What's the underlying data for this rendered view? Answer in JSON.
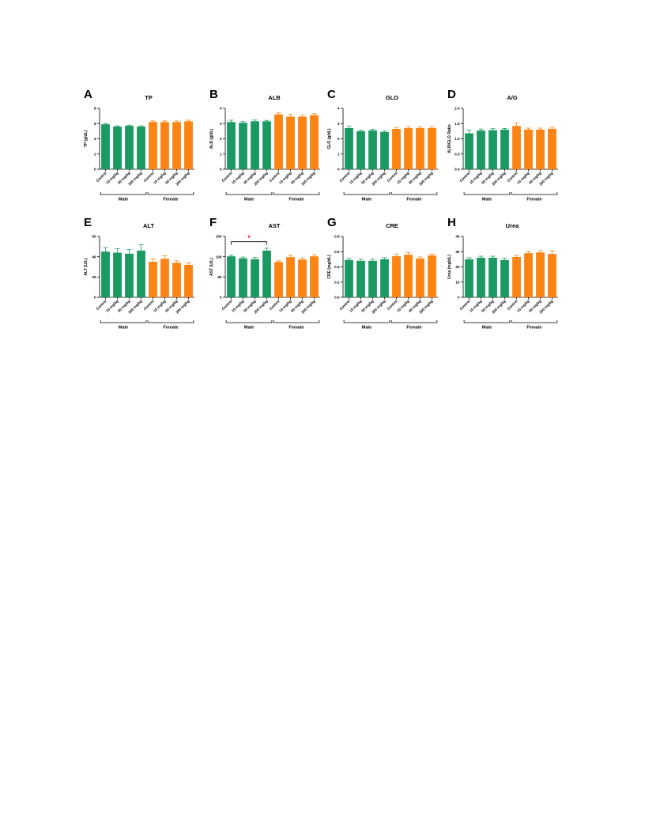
{
  "figure": {
    "group_labels": [
      "Male",
      "Female"
    ],
    "group_colors": [
      "#1a9a62",
      "#fb8412"
    ],
    "significance_color": "#e02020"
  },
  "chart_data": [
    {
      "type": "bar",
      "letter": "A",
      "title": "TP",
      "ylabel": "TP  (g/dL)",
      "categories": [
        "Control",
        "15 mg/kg",
        "50 mg/kg",
        "200 mg/kg",
        "Control",
        "15 mg/kg",
        "50 mg/kg",
        "200 mg/kg"
      ],
      "groups": [
        "Male",
        "Male",
        "Male",
        "Male",
        "Female",
        "Female",
        "Female",
        "Female"
      ],
      "values": [
        5.9,
        5.6,
        5.7,
        5.6,
        6.2,
        6.2,
        6.2,
        6.3
      ],
      "errors": [
        0.1,
        0.1,
        0.1,
        0.1,
        0.15,
        0.15,
        0.15,
        0.15
      ],
      "ylim": [
        0,
        8
      ],
      "yticks": [
        0,
        2,
        4,
        6,
        8
      ],
      "ytick_labels": [
        "0",
        "2",
        "4",
        "6",
        "8"
      ],
      "significance": []
    },
    {
      "type": "bar",
      "letter": "B",
      "title": "ALB",
      "ylabel": "ALB (g/dL)",
      "categories": [
        "Control",
        "15 mg/kg",
        "50 mg/kg",
        "200 mg/kg",
        "Control",
        "15 mg/kg",
        "50 mg/kg",
        "200 mg/kg"
      ],
      "groups": [
        "Male",
        "Male",
        "Male",
        "Male",
        "Female",
        "Female",
        "Female",
        "Female"
      ],
      "values": [
        3.1,
        3.05,
        3.15,
        3.15,
        3.6,
        3.45,
        3.45,
        3.55
      ],
      "errors": [
        0.12,
        0.08,
        0.08,
        0.06,
        0.1,
        0.15,
        0.08,
        0.1
      ],
      "ylim": [
        0,
        4
      ],
      "yticks": [
        0,
        1,
        2,
        3,
        4
      ],
      "ytick_labels": [
        "0",
        "1",
        "2",
        "3",
        "4"
      ],
      "significance": []
    },
    {
      "type": "bar",
      "letter": "C",
      "title": "GLO",
      "ylabel": "GLO (g/dL)",
      "categories": [
        "Control",
        "15 mg/kg",
        "50 mg/kg",
        "200 mg/kg",
        "Control",
        "15 mg/kg",
        "50 mg/kg",
        "200 mg/kg"
      ],
      "groups": [
        "Male",
        "Male",
        "Male",
        "Male",
        "Female",
        "Female",
        "Female",
        "Female"
      ],
      "values": [
        2.7,
        2.5,
        2.55,
        2.45,
        2.65,
        2.7,
        2.7,
        2.7
      ],
      "errors": [
        0.12,
        0.06,
        0.08,
        0.06,
        0.1,
        0.1,
        0.08,
        0.1
      ],
      "ylim": [
        0,
        4
      ],
      "yticks": [
        0,
        1,
        2,
        3,
        4
      ],
      "ytick_labels": [
        "0",
        "1",
        "2",
        "3",
        "4"
      ],
      "significance": []
    },
    {
      "type": "bar",
      "letter": "D",
      "title": "A/G",
      "ylabel": "ALB/GLO Ratio",
      "categories": [
        "Control",
        "15 mg/kg",
        "50 mg/kg",
        "200 mg/kg",
        "Control",
        "15 mg/kg",
        "50 mg/kg",
        "200 mg/kg"
      ],
      "groups": [
        "Male",
        "Male",
        "Male",
        "Male",
        "Female",
        "Female",
        "Female",
        "Female"
      ],
      "values": [
        1.18,
        1.27,
        1.28,
        1.3,
        1.42,
        1.3,
        1.3,
        1.33
      ],
      "errors": [
        0.1,
        0.05,
        0.05,
        0.04,
        0.1,
        0.05,
        0.05,
        0.05
      ],
      "ylim": [
        0,
        2
      ],
      "yticks": [
        0,
        0.5,
        1,
        1.5,
        2
      ],
      "ytick_labels": [
        "0.0",
        "0.5",
        "1.0",
        "1.5",
        "2.0"
      ],
      "significance": []
    },
    {
      "type": "bar",
      "letter": "E",
      "title": "ALT",
      "ylabel": "ALT (U/L)",
      "categories": [
        "Control",
        "15 mg/kg",
        "50 mg/kg",
        "200 mg/kg",
        "Control",
        "15 mg/kg",
        "50 mg/kg",
        "200 mg/kg"
      ],
      "groups": [
        "Male",
        "Male",
        "Male",
        "Male",
        "Female",
        "Female",
        "Female",
        "Female"
      ],
      "values": [
        45,
        44,
        43,
        46,
        35,
        38,
        34,
        32
      ],
      "errors": [
        4,
        4,
        4,
        6,
        3,
        3,
        2,
        2
      ],
      "ylim": [
        0,
        60
      ],
      "yticks": [
        0,
        20,
        40,
        60
      ],
      "ytick_labels": [
        "0",
        "20",
        "40",
        "60"
      ],
      "significance": []
    },
    {
      "type": "bar",
      "letter": "F",
      "title": "AST",
      "ylabel": "AST (U/L)",
      "categories": [
        "Control",
        "15 mg/kg",
        "50 mg/kg",
        "200 mg/kg",
        "Control",
        "15 mg/kg",
        "50 mg/kg",
        "200 mg/kg"
      ],
      "groups": [
        "Male",
        "Male",
        "Male",
        "Male",
        "Female",
        "Female",
        "Female",
        "Female"
      ],
      "values": [
        101,
        96,
        94,
        115,
        87,
        99,
        93,
        101
      ],
      "errors": [
        3,
        3,
        4,
        6,
        3,
        5,
        4,
        4
      ],
      "ylim": [
        0,
        150
      ],
      "yticks": [
        0,
        50,
        100,
        150
      ],
      "ytick_labels": [
        "0",
        "50",
        "100",
        "150"
      ],
      "significance": [
        {
          "from": 0,
          "to": 3,
          "label": "*",
          "level": 137
        }
      ]
    },
    {
      "type": "bar",
      "letter": "G",
      "title": "CRE",
      "ylabel": "CRE (mg/dL)",
      "categories": [
        "Control",
        "15 mg/kg",
        "50 mg/kg",
        "200 mg/kg",
        "Control",
        "15 mg/kg",
        "50 mg/kg",
        "200 mg/kg"
      ],
      "groups": [
        "Male",
        "Male",
        "Male",
        "Male",
        "Female",
        "Female",
        "Female",
        "Female"
      ],
      "values": [
        0.49,
        0.48,
        0.48,
        0.5,
        0.54,
        0.56,
        0.51,
        0.55
      ],
      "errors": [
        0.02,
        0.02,
        0.02,
        0.02,
        0.03,
        0.03,
        0.02,
        0.02
      ],
      "ylim": [
        0,
        0.8
      ],
      "yticks": [
        0,
        0.2,
        0.4,
        0.6,
        0.8
      ],
      "ytick_labels": [
        "0.0",
        "0.2",
        "0.4",
        "0.6",
        "0.8"
      ],
      "significance": []
    },
    {
      "type": "bar",
      "letter": "H",
      "title": "Urea",
      "ylabel": "Urea (mg/dL)",
      "categories": [
        "Control",
        "15 mg/kg",
        "50 mg/kg",
        "200 mg/kg",
        "Control",
        "15 mg/kg",
        "50 mg/kg",
        "200 mg/kg"
      ],
      "groups": [
        "Male",
        "Male",
        "Male",
        "Male",
        "Female",
        "Female",
        "Female",
        "Female"
      ],
      "values": [
        25,
        26,
        26,
        24.5,
        26.5,
        29,
        29.5,
        28.5
      ],
      "errors": [
        1,
        1,
        1,
        1.2,
        1,
        1.2,
        1.2,
        2
      ],
      "ylim": [
        0,
        40
      ],
      "yticks": [
        0,
        10,
        20,
        30,
        40
      ],
      "ytick_labels": [
        "0",
        "10",
        "20",
        "30",
        "40"
      ],
      "significance": []
    }
  ]
}
